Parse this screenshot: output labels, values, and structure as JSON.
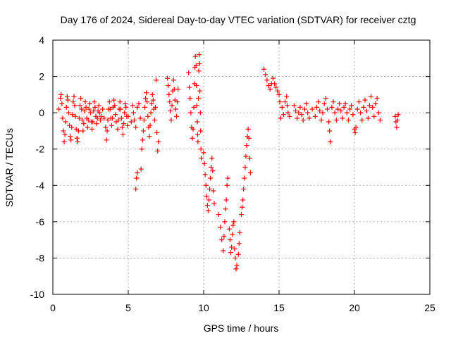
{
  "chart_data": {
    "type": "scatter",
    "title": "Day 176 of 2024, Sidereal Day-to-day VTEC variation (SDTVAR) for receiver cztg",
    "xlabel": "GPS time / hours",
    "ylabel": "SDTVAR / TECUs",
    "xlim": [
      0,
      25
    ],
    "ylim": [
      -10,
      4
    ],
    "xticks": [
      "0",
      "5",
      "10",
      "15",
      "20",
      "25"
    ],
    "yticks": [
      "4",
      "2",
      "0",
      "-2",
      "-4",
      "-6",
      "-8",
      "-10"
    ],
    "grid": true,
    "marker": "plus",
    "marker_color": "#ff0000",
    "series": [
      {
        "name": "SDTVAR",
        "points": [
          [
            0.4,
            0.2
          ],
          [
            0.5,
            0.8
          ],
          [
            0.55,
            1.0
          ],
          [
            0.6,
            0.5
          ],
          [
            0.65,
            -0.3
          ],
          [
            0.7,
            -1.0
          ],
          [
            0.75,
            -1.6
          ],
          [
            0.8,
            -1.2
          ],
          [
            0.85,
            -0.5
          ],
          [
            0.9,
            0.3
          ],
          [
            0.95,
            0.9
          ],
          [
            1.0,
            0.7
          ],
          [
            1.05,
            0.0
          ],
          [
            1.1,
            -0.7
          ],
          [
            1.15,
            -1.3
          ],
          [
            1.2,
            -1.5
          ],
          [
            1.25,
            -0.8
          ],
          [
            1.3,
            -0.1
          ],
          [
            1.35,
            0.6
          ],
          [
            1.4,
            0.9
          ],
          [
            1.45,
            0.4
          ],
          [
            1.5,
            -0.2
          ],
          [
            1.55,
            -0.9
          ],
          [
            1.6,
            -1.4
          ],
          [
            1.65,
            -1.6
          ],
          [
            1.7,
            -1.0
          ],
          [
            1.75,
            -0.3
          ],
          [
            1.8,
            0.4
          ],
          [
            1.85,
            0.8
          ],
          [
            1.9,
            0.2
          ],
          [
            1.95,
            -0.4
          ],
          [
            2.0,
            -1.0
          ],
          [
            2.05,
            -0.6
          ],
          [
            2.1,
            0.1
          ],
          [
            2.15,
            0.6
          ],
          [
            2.2,
            0.3
          ],
          [
            2.25,
            -0.3
          ],
          [
            2.3,
            -0.8
          ],
          [
            2.35,
            -0.4
          ],
          [
            2.4,
            0.2
          ],
          [
            2.45,
            0.5
          ],
          [
            2.5,
            0.0
          ],
          [
            2.55,
            -0.5
          ],
          [
            2.6,
            -0.9
          ],
          [
            2.65,
            -0.5
          ],
          [
            2.7,
            0.1
          ],
          [
            2.75,
            0.6
          ],
          [
            2.8,
            0.3
          ],
          [
            2.85,
            -0.2
          ],
          [
            2.9,
            -0.6
          ],
          [
            2.95,
            -0.3
          ],
          [
            3.0,
            0.1
          ],
          [
            3.05,
            0.4
          ],
          [
            3.1,
            0.0
          ],
          [
            3.15,
            -0.4
          ],
          [
            3.2,
            -0.2
          ],
          [
            3.3,
            0.2
          ],
          [
            3.4,
            -0.3
          ],
          [
            3.5,
            -0.8
          ],
          [
            3.55,
            -1.5
          ],
          [
            3.6,
            -1.0
          ],
          [
            3.65,
            -0.4
          ],
          [
            3.7,
            0.2
          ],
          [
            3.75,
            0.6
          ],
          [
            3.8,
            0.2
          ],
          [
            3.85,
            -0.3
          ],
          [
            3.9,
            -0.7
          ],
          [
            3.95,
            -0.3
          ],
          [
            4.0,
            0.3
          ],
          [
            4.05,
            0.7
          ],
          [
            4.1,
            0.4
          ],
          [
            4.15,
            -0.1
          ],
          [
            4.2,
            -0.5
          ],
          [
            4.3,
            -0.9
          ],
          [
            4.35,
            -0.4
          ],
          [
            4.4,
            0.2
          ],
          [
            4.45,
            0.6
          ],
          [
            4.5,
            0.2
          ],
          [
            4.55,
            -0.3
          ],
          [
            4.6,
            -0.8
          ],
          [
            4.65,
            -1.2
          ],
          [
            4.7,
            -0.6
          ],
          [
            4.75,
            0.0
          ],
          [
            4.8,
            0.5
          ],
          [
            4.85,
            0.3
          ],
          [
            4.9,
            -0.2
          ],
          [
            4.95,
            -0.7
          ],
          [
            5.0,
            -0.2
          ],
          [
            5.2,
            -0.5
          ],
          [
            5.3,
            0.4
          ],
          [
            5.35,
            0.0
          ],
          [
            5.4,
            -0.4
          ],
          [
            5.5,
            -0.8
          ],
          [
            5.5,
            -4.2
          ],
          [
            5.55,
            -3.6
          ],
          [
            5.6,
            -3.3
          ],
          [
            5.6,
            0.3
          ],
          [
            5.7,
            0.5
          ],
          [
            5.8,
            -0.3
          ],
          [
            5.85,
            -3.1
          ],
          [
            5.9,
            -2.0
          ],
          [
            5.95,
            -1.5
          ],
          [
            6.0,
            -1.0
          ],
          [
            6.05,
            -0.4
          ],
          [
            6.1,
            0.3
          ],
          [
            6.15,
            0.8
          ],
          [
            6.2,
            1.1
          ],
          [
            6.25,
            0.6
          ],
          [
            6.3,
            -0.2
          ],
          [
            6.35,
            -0.8
          ],
          [
            6.4,
            -1.3
          ],
          [
            6.45,
            -0.7
          ],
          [
            6.5,
            0.0
          ],
          [
            6.55,
            0.5
          ],
          [
            6.6,
            1.0
          ],
          [
            6.65,
            0.7
          ],
          [
            6.7,
            0.2
          ],
          [
            6.75,
            -0.4
          ],
          [
            6.8,
            0.3
          ],
          [
            6.85,
            1.8
          ],
          [
            6.9,
            -1.1
          ],
          [
            6.95,
            -2.1
          ],
          [
            7.0,
            -1.6
          ],
          [
            7.6,
            1.9
          ],
          [
            7.65,
            1.5
          ],
          [
            7.7,
            1.0
          ],
          [
            7.75,
            0.6
          ],
          [
            7.8,
            0.1
          ],
          [
            7.85,
            -0.4
          ],
          [
            7.9,
            0.4
          ],
          [
            7.95,
            1.2
          ],
          [
            8.0,
            1.8
          ],
          [
            8.05,
            1.3
          ],
          [
            8.1,
            0.7
          ],
          [
            8.15,
            0.2
          ],
          [
            8.2,
            -0.2
          ],
          [
            8.25,
            0.6
          ],
          [
            8.3,
            1.3
          ],
          [
            9.0,
            2.2
          ],
          [
            9.05,
            1.4
          ],
          [
            9.1,
            0.8
          ],
          [
            9.15,
            0.0
          ],
          [
            9.2,
            -0.8
          ],
          [
            9.25,
            -1.4
          ],
          [
            9.3,
            -0.9
          ],
          [
            9.35,
            0.3
          ],
          [
            9.4,
            1.6
          ],
          [
            9.42,
            2.5
          ],
          [
            9.45,
            3.1
          ],
          [
            9.5,
            2.6
          ],
          [
            9.52,
            1.5
          ],
          [
            9.55,
            0.4
          ],
          [
            9.58,
            -0.5
          ],
          [
            9.6,
            -1.2
          ],
          [
            9.62,
            -1.6
          ],
          [
            9.65,
            0.8
          ],
          [
            9.68,
            2.3
          ],
          [
            9.7,
            3.2
          ],
          [
            9.72,
            2.7
          ],
          [
            9.75,
            1.2
          ],
          [
            9.78,
            0.0
          ],
          [
            9.8,
            -1.0
          ],
          [
            9.82,
            -2.0
          ],
          [
            9.85,
            -2.5
          ],
          [
            10.0,
            -2.2
          ],
          [
            10.05,
            -2.8
          ],
          [
            10.1,
            -3.4
          ],
          [
            10.15,
            -4.0
          ],
          [
            10.2,
            -4.6
          ],
          [
            10.25,
            -5.1
          ],
          [
            10.3,
            -5.4
          ],
          [
            10.35,
            -4.8
          ],
          [
            10.4,
            -4.2
          ],
          [
            10.45,
            -3.6
          ],
          [
            10.5,
            -3.0
          ],
          [
            10.55,
            -2.5
          ],
          [
            10.6,
            -3.2
          ],
          [
            10.65,
            -4.3
          ],
          [
            10.7,
            -5.0
          ],
          [
            11.0,
            -5.6
          ],
          [
            11.1,
            -6.3
          ],
          [
            11.2,
            -7.0
          ],
          [
            11.3,
            -7.6
          ],
          [
            11.35,
            -6.8
          ],
          [
            11.4,
            -6.0
          ],
          [
            11.45,
            -5.3
          ],
          [
            11.5,
            -4.8
          ],
          [
            11.55,
            -4.0
          ],
          [
            11.6,
            -3.6
          ],
          [
            11.7,
            -6.4
          ],
          [
            11.75,
            -7.0
          ],
          [
            11.8,
            -7.7
          ],
          [
            11.85,
            -7.4
          ],
          [
            11.9,
            -6.7
          ],
          [
            11.95,
            -6.2
          ],
          [
            12.0,
            -6.0
          ],
          [
            12.05,
            -7.5
          ],
          [
            12.1,
            -8.0
          ],
          [
            12.15,
            -8.6
          ],
          [
            12.2,
            -8.4
          ],
          [
            12.3,
            -7.8
          ],
          [
            12.35,
            -7.2
          ],
          [
            12.4,
            -6.6
          ],
          [
            12.5,
            -5.6
          ],
          [
            12.55,
            -5.2
          ],
          [
            12.6,
            -4.8
          ],
          [
            12.65,
            -4.2
          ],
          [
            12.7,
            -3.6
          ],
          [
            12.75,
            -3.0
          ],
          [
            12.8,
            -2.4
          ],
          [
            12.85,
            -1.8
          ],
          [
            12.9,
            -1.3
          ],
          [
            12.95,
            -0.9
          ],
          [
            13.0,
            -1.4
          ],
          [
            13.05,
            -2.5
          ],
          [
            13.1,
            -3.3
          ],
          [
            14.0,
            2.4
          ],
          [
            14.1,
            2.1
          ],
          [
            14.2,
            1.8
          ],
          [
            14.3,
            1.5
          ],
          [
            14.4,
            1.3
          ],
          [
            14.5,
            1.6
          ],
          [
            14.6,
            1.9
          ],
          [
            14.7,
            1.6
          ],
          [
            14.8,
            1.4
          ],
          [
            14.9,
            1.2
          ],
          [
            15.0,
            1.0
          ],
          [
            15.05,
            0.6
          ],
          [
            15.1,
            -0.3
          ],
          [
            15.2,
            0.3
          ],
          [
            15.3,
            -0.1
          ],
          [
            15.4,
            0.6
          ],
          [
            15.5,
            0.9
          ],
          [
            15.55,
            0.4
          ],
          [
            15.6,
            0.0
          ],
          [
            15.7,
            -0.2
          ],
          [
            16.0,
            0.4
          ],
          [
            16.1,
            0.1
          ],
          [
            16.2,
            -0.3
          ],
          [
            16.3,
            0.0
          ],
          [
            16.4,
            0.3
          ],
          [
            16.5,
            -0.1
          ],
          [
            16.6,
            -0.4
          ],
          [
            16.7,
            0.2
          ],
          [
            16.8,
            0.5
          ],
          [
            16.9,
            0.0
          ],
          [
            17.0,
            -0.3
          ],
          [
            17.2,
            0.2
          ],
          [
            17.4,
            -0.2
          ],
          [
            17.5,
            0.3
          ],
          [
            17.6,
            0.6
          ],
          [
            17.7,
            0.1
          ],
          [
            17.8,
            -0.4
          ],
          [
            17.9,
            0.0
          ],
          [
            18.0,
            0.5
          ],
          [
            18.1,
            0.8
          ],
          [
            18.2,
            0.2
          ],
          [
            18.3,
            -0.5
          ],
          [
            18.35,
            -1.0
          ],
          [
            18.4,
            -1.6
          ],
          [
            18.5,
            0.3
          ],
          [
            18.6,
            0.6
          ],
          [
            18.7,
            0.0
          ],
          [
            18.8,
            -0.4
          ],
          [
            18.9,
            0.2
          ],
          [
            19.0,
            0.5
          ],
          [
            19.1,
            0.1
          ],
          [
            19.2,
            -0.3
          ],
          [
            19.3,
            0.3
          ],
          [
            19.4,
            0.5
          ],
          [
            19.5,
            0.0
          ],
          [
            19.6,
            -0.4
          ],
          [
            19.7,
            0.2
          ],
          [
            19.8,
            0.4
          ],
          [
            19.9,
            -0.1
          ],
          [
            20.0,
            -0.9
          ],
          [
            20.05,
            -1.1
          ],
          [
            20.1,
            -0.8
          ],
          [
            20.2,
            0.2
          ],
          [
            20.3,
            0.6
          ],
          [
            20.4,
            0.0
          ],
          [
            20.5,
            -0.4
          ],
          [
            20.6,
            0.3
          ],
          [
            20.7,
            0.7
          ],
          [
            20.8,
            0.1
          ],
          [
            20.9,
            -0.3
          ],
          [
            21.0,
            0.4
          ],
          [
            21.1,
            0.9
          ],
          [
            21.2,
            0.3
          ],
          [
            21.3,
            -0.2
          ],
          [
            21.4,
            0.5
          ],
          [
            21.5,
            0.8
          ],
          [
            21.6,
            0.0
          ],
          [
            21.7,
            -0.4
          ],
          [
            22.7,
            -0.2
          ],
          [
            22.75,
            -0.5
          ],
          [
            22.8,
            -0.8
          ],
          [
            22.85,
            -0.4
          ],
          [
            22.9,
            -0.1
          ]
        ]
      }
    ]
  }
}
